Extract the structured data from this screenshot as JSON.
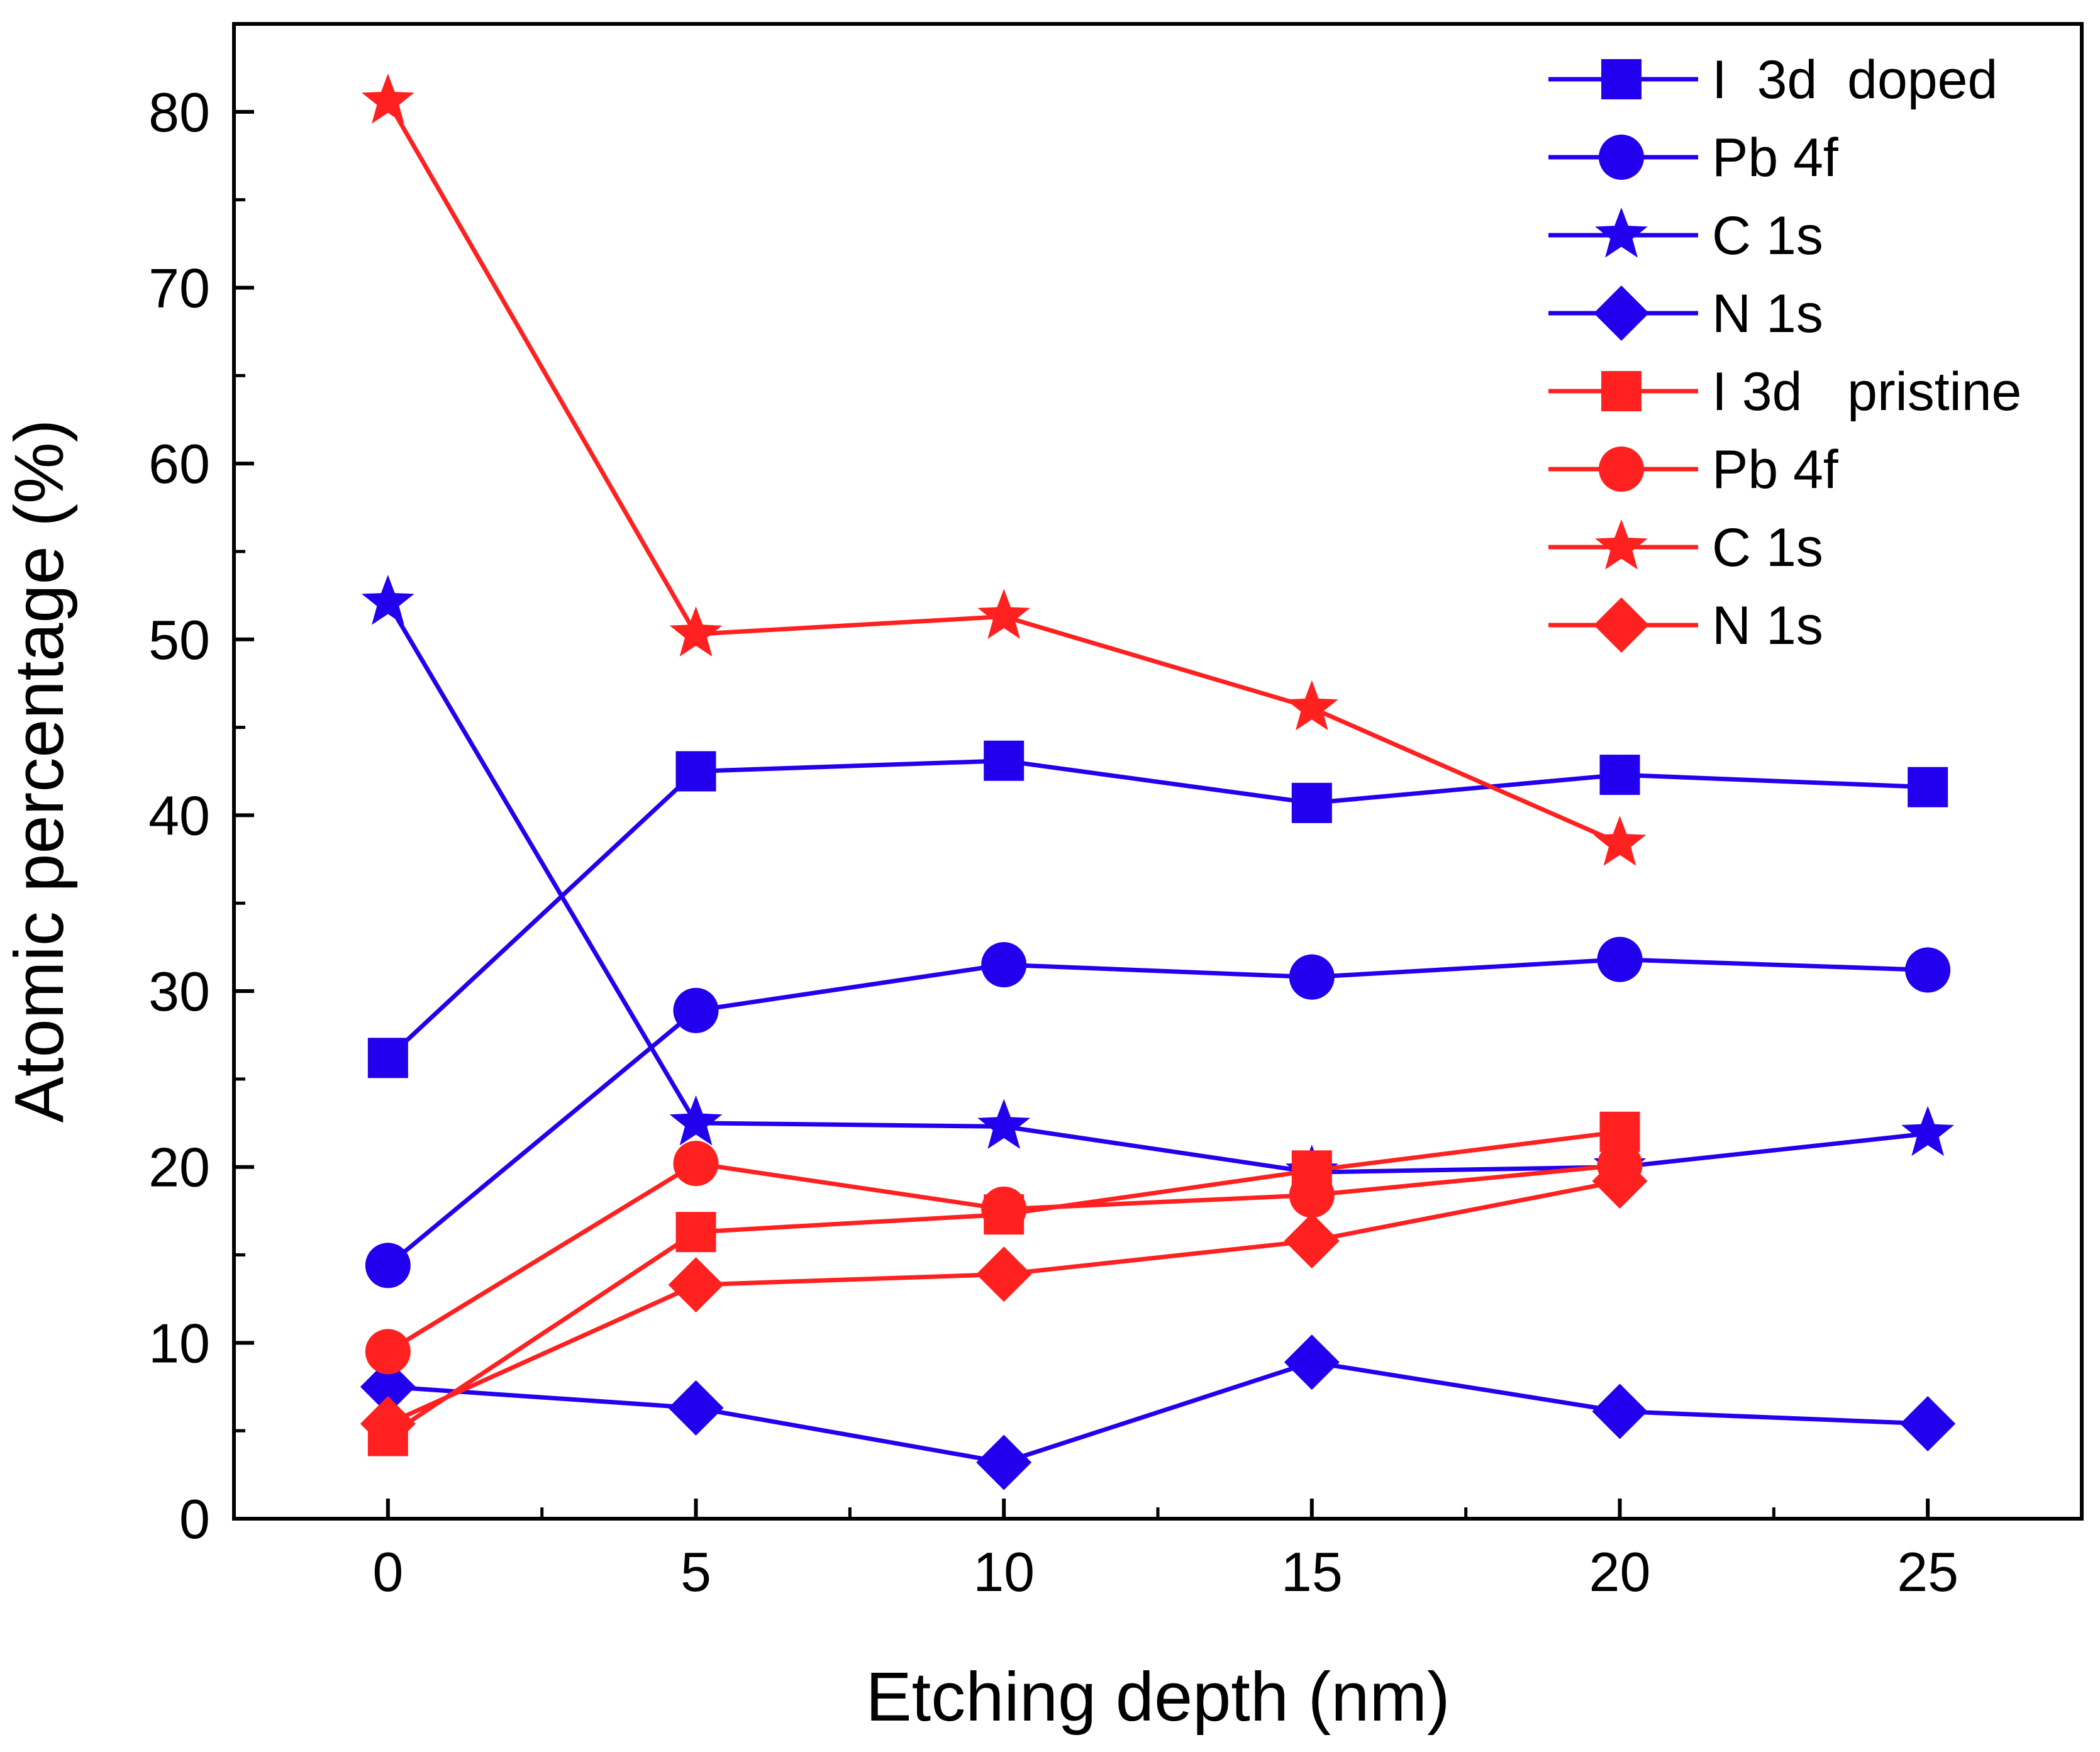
{
  "chart_data": {
    "type": "line",
    "xlabel": "Etching depth (nm)",
    "ylabel": "Atomic percentage (%)",
    "xlim": [
      -2.5,
      27.5
    ],
    "ylim": [
      0,
      85
    ],
    "xticks": [
      0,
      5,
      10,
      15,
      20,
      25
    ],
    "yticks": [
      0,
      10,
      20,
      30,
      40,
      50,
      60,
      70,
      80
    ],
    "grid": false,
    "legend_position": "top-right",
    "colors": {
      "doped": "#2200ee",
      "pristine": "#ff2020"
    },
    "series": [
      {
        "name": "I  3d  doped",
        "group": "doped",
        "marker": "square",
        "x": [
          0,
          5,
          10,
          15,
          20,
          25
        ],
        "y": [
          26.2,
          42.5,
          43.1,
          40.7,
          42.3,
          41.6
        ]
      },
      {
        "name": "Pb 4f",
        "group": "doped",
        "marker": "circle",
        "x": [
          0,
          5,
          10,
          15,
          20,
          25
        ],
        "y": [
          14.4,
          28.9,
          31.5,
          30.8,
          31.8,
          31.2
        ]
      },
      {
        "name": "C 1s",
        "group": "doped",
        "marker": "star",
        "x": [
          0,
          5,
          10,
          15,
          20,
          25
        ],
        "y": [
          52.1,
          22.5,
          22.3,
          19.7,
          20.0,
          21.9
        ]
      },
      {
        "name": "N 1s",
        "group": "doped",
        "marker": "diamond",
        "x": [
          0,
          5,
          10,
          15,
          20,
          25
        ],
        "y": [
          7.5,
          6.3,
          3.2,
          8.9,
          6.1,
          5.4
        ]
      },
      {
        "name": "I 3d   pristine",
        "group": "pristine",
        "marker": "square",
        "x": [
          0,
          5,
          10,
          15,
          20
        ],
        "y": [
          4.7,
          16.3,
          17.3,
          19.8,
          22.0
        ]
      },
      {
        "name": "Pb 4f",
        "group": "pristine",
        "marker": "circle",
        "x": [
          0,
          5,
          10,
          15,
          20
        ],
        "y": [
          9.5,
          20.2,
          17.6,
          18.4,
          20.1
        ]
      },
      {
        "name": "C 1s",
        "group": "pristine",
        "marker": "star",
        "x": [
          0,
          5,
          10,
          15,
          20
        ],
        "y": [
          80.6,
          50.3,
          51.3,
          46.1,
          38.4
        ]
      },
      {
        "name": "N 1s",
        "group": "pristine",
        "marker": "diamond",
        "x": [
          0,
          5,
          10,
          15,
          20
        ],
        "y": [
          5.4,
          13.3,
          13.9,
          15.8,
          19.2
        ]
      }
    ]
  }
}
